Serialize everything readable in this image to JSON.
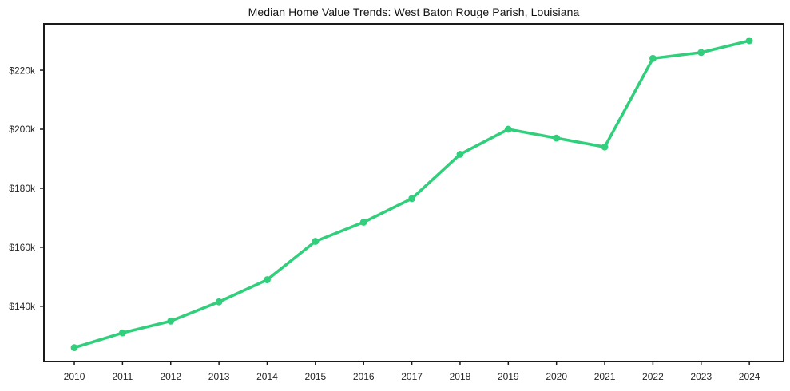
{
  "figure": {
    "title": "Median Home Value Trends: West Baton Rouge Parish, Louisiana"
  },
  "chart_data": {
    "type": "line",
    "title": "Median Home Value Trends: West Baton Rouge Parish, Louisiana",
    "categories": [
      "2010",
      "2011",
      "2012",
      "2013",
      "2014",
      "2015",
      "2016",
      "2017",
      "2018",
      "2019",
      "2020",
      "2021",
      "2022",
      "2023",
      "2024"
    ],
    "values": [
      126,
      131,
      135,
      141.5,
      149,
      162,
      168.5,
      176.5,
      191.5,
      200,
      197,
      194,
      224,
      226,
      230
    ],
    "values_unit": "USD thousands",
    "series_name": "Median Home Value",
    "xlabel": "",
    "ylabel": "",
    "yticks": {
      "values": [
        140,
        160,
        180,
        200,
        220
      ],
      "labels": [
        "$140k",
        "$160k",
        "$180k",
        "$200k",
        "$220k"
      ]
    },
    "xlim": [
      2009.37,
      2024.71
    ],
    "ylim": [
      121.3,
      235.7
    ],
    "grid": false,
    "legend": "none",
    "marker": "circle",
    "colors": {
      "line": "#31ce7c",
      "axis": "#1a1a1a",
      "tick_text": "#262626",
      "title_text": "#111111",
      "background": "#ffffff"
    }
  }
}
